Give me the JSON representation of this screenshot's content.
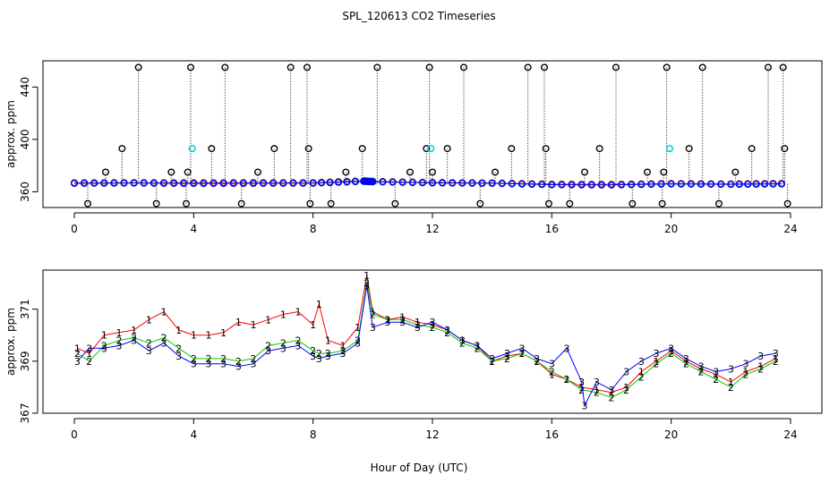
{
  "figure": {
    "title": "SPL_120613  CO2 Timeseries",
    "xlabel": "Hour of Day (UTC)"
  },
  "colors": {
    "black": "#000000",
    "red": "#ff0000",
    "green": "#00cc00",
    "blue": "#0000ff",
    "cyan": "#00cccc"
  },
  "chart_data": [
    {
      "type": "scatter",
      "title": "SPL_120613  CO2 Timeseries",
      "ylabel": "approx. ppm",
      "xlabel": "",
      "xlim": [
        0,
        24
      ],
      "ylim": [
        348,
        460
      ],
      "xticks": [
        0,
        4,
        8,
        12,
        16,
        20,
        24
      ],
      "yticks": [
        360,
        400,
        440
      ],
      "flag_values": [
        351,
        375,
        393,
        455
      ],
      "flag_x": [
        0.45,
        1.05,
        1.6,
        2.15,
        2.75,
        3.25,
        3.75,
        3.8,
        3.9,
        4.6,
        5.05,
        5.6,
        6.15,
        6.7,
        7.25,
        7.8,
        7.85,
        7.9,
        8.6,
        9.1,
        9.65,
        10.15,
        10.75,
        11.25,
        11.8,
        11.9,
        12.0,
        12.5,
        13.05,
        13.6,
        14.1,
        14.65,
        15.2,
        15.75,
        15.8,
        15.9,
        16.6,
        17.1,
        17.6,
        18.15,
        18.7,
        19.2,
        19.7,
        19.75,
        19.85,
        20.6,
        21.05,
        21.6,
        22.15,
        22.7,
        23.25,
        23.75,
        23.8,
        23.9
      ],
      "flag_levels": [
        0,
        1,
        2,
        3,
        0,
        1,
        0,
        1,
        3,
        2,
        3,
        0,
        1,
        2,
        3,
        3,
        2,
        0,
        0,
        1,
        2,
        3,
        0,
        1,
        2,
        3,
        1,
        2,
        3,
        0,
        1,
        2,
        3,
        3,
        2,
        0,
        0,
        1,
        2,
        3,
        0,
        1,
        0,
        1,
        3,
        2,
        3,
        0,
        1,
        2,
        3,
        3,
        2,
        0
      ],
      "series": [
        {
          "name": "1",
          "color": "#ff0000",
          "x": [
            0,
            2,
            4,
            6,
            8,
            9.7,
            10,
            12,
            14,
            16,
            18,
            20,
            22,
            23.7
          ],
          "values": [
            366.9,
            367.0,
            366.9,
            367.0,
            367.0,
            368.4,
            368.0,
            367.1,
            366.8,
            365.8,
            365.7,
            366.3,
            366.0,
            366.4
          ]
        },
        {
          "name": "2",
          "color": "#00cc00",
          "x": [
            0,
            2,
            4,
            6,
            8,
            9.7,
            10,
            12,
            14,
            16,
            18,
            20,
            22,
            23.7
          ],
          "values": [
            366.6,
            366.8,
            366.5,
            366.6,
            366.7,
            368.2,
            367.8,
            366.9,
            366.6,
            365.5,
            365.3,
            366.1,
            365.8,
            366.1
          ]
        },
        {
          "name": "3",
          "color": "#0000ff",
          "x": [
            0,
            2,
            4,
            6,
            8,
            9.7,
            10,
            12,
            14,
            16,
            18,
            20,
            22,
            23.7
          ],
          "values": [
            366.5,
            366.7,
            366.4,
            366.5,
            366.6,
            368.0,
            367.7,
            366.8,
            366.5,
            365.4,
            365.2,
            366.0,
            365.7,
            366.0
          ]
        }
      ]
    },
    {
      "type": "line",
      "title": "",
      "ylabel": "approx. ppm",
      "xlabel": "Hour of Day (UTC)",
      "xlim": [
        0,
        24
      ],
      "ylim": [
        367,
        372.5
      ],
      "xticks": [
        0,
        4,
        8,
        12,
        16,
        20,
        24
      ],
      "yticks": [
        367,
        369,
        371
      ],
      "series": [
        {
          "name": "1",
          "color": "#ff0000",
          "x": [
            0.1,
            0.5,
            1.0,
            1.5,
            2.0,
            2.5,
            3.0,
            3.5,
            4.0,
            4.5,
            5.0,
            5.5,
            6.0,
            6.5,
            7.0,
            7.5,
            8.0,
            8.2,
            8.5,
            9.0,
            9.5,
            9.8,
            10.0,
            10.5,
            11.0,
            11.5,
            12.0,
            12.5,
            13.0,
            13.5,
            14.0,
            14.5,
            15.0,
            15.5,
            16.0,
            16.5,
            17.0,
            17.5,
            18.0,
            18.5,
            19.0,
            19.5,
            20.0,
            20.5,
            21.0,
            21.5,
            22.0,
            22.5,
            23.0,
            23.5
          ],
          "values": [
            369.5,
            369.3,
            370.0,
            370.1,
            370.2,
            370.6,
            370.9,
            370.2,
            370.0,
            370.0,
            370.1,
            370.5,
            370.4,
            370.6,
            370.8,
            370.9,
            370.4,
            371.2,
            369.8,
            369.6,
            370.3,
            372.3,
            370.9,
            370.6,
            370.7,
            370.5,
            370.4,
            370.2,
            369.8,
            369.6,
            369.0,
            369.2,
            369.3,
            369.0,
            368.5,
            368.3,
            368.0,
            367.9,
            367.8,
            368.0,
            368.6,
            369.0,
            369.4,
            369.0,
            368.7,
            368.5,
            368.2,
            368.6,
            368.8,
            369.1
          ]
        },
        {
          "name": "2",
          "color": "#00cc00",
          "x": [
            0.1,
            0.5,
            1.0,
            1.5,
            2.0,
            2.5,
            3.0,
            3.5,
            4.0,
            4.5,
            5.0,
            5.5,
            6.0,
            6.5,
            7.0,
            7.5,
            8.0,
            8.2,
            8.5,
            9.0,
            9.5,
            9.8,
            10.0,
            10.5,
            11.0,
            11.5,
            12.0,
            12.5,
            13.0,
            13.5,
            14.0,
            14.5,
            15.0,
            15.5,
            16.0,
            16.5,
            17.0,
            17.5,
            18.0,
            18.5,
            19.0,
            19.5,
            20.0,
            20.5,
            21.0,
            21.5,
            22.0,
            22.5,
            23.0,
            23.5
          ],
          "values": [
            369.3,
            369.0,
            369.6,
            369.8,
            369.9,
            369.7,
            369.9,
            369.5,
            369.1,
            369.1,
            369.1,
            369.0,
            369.1,
            369.6,
            369.7,
            369.8,
            369.4,
            369.3,
            369.3,
            369.4,
            369.8,
            372.0,
            370.8,
            370.6,
            370.6,
            370.4,
            370.3,
            370.1,
            369.7,
            369.5,
            369.0,
            369.1,
            369.3,
            369.0,
            368.6,
            368.3,
            367.9,
            367.8,
            367.6,
            367.9,
            368.4,
            368.9,
            369.3,
            368.9,
            368.6,
            368.3,
            368.0,
            368.5,
            368.7,
            369.0
          ]
        },
        {
          "name": "3",
          "color": "#0000ff",
          "x": [
            0.1,
            0.5,
            1.0,
            1.5,
            2.0,
            2.5,
            3.0,
            3.5,
            4.0,
            4.5,
            5.0,
            5.5,
            6.0,
            6.5,
            7.0,
            7.5,
            8.0,
            8.2,
            8.5,
            9.0,
            9.5,
            9.8,
            10.0,
            10.5,
            11.0,
            11.5,
            12.0,
            12.5,
            13.0,
            13.5,
            14.0,
            14.5,
            15.0,
            15.5,
            16.0,
            16.5,
            17.0,
            17.1,
            17.5,
            18.0,
            18.5,
            19.0,
            19.5,
            20.0,
            20.5,
            21.0,
            21.5,
            22.0,
            22.5,
            23.0,
            23.5
          ],
          "values": [
            369.0,
            369.5,
            369.5,
            369.6,
            369.8,
            369.4,
            369.7,
            369.2,
            368.9,
            368.9,
            368.9,
            368.8,
            368.9,
            369.4,
            369.5,
            369.6,
            369.2,
            369.1,
            369.2,
            369.3,
            369.7,
            371.9,
            370.3,
            370.5,
            370.5,
            370.3,
            370.5,
            370.2,
            369.8,
            369.6,
            369.1,
            369.3,
            369.5,
            369.1,
            368.9,
            369.5,
            368.2,
            367.3,
            368.2,
            367.9,
            368.6,
            369.0,
            369.3,
            369.5,
            369.1,
            368.8,
            368.6,
            368.7,
            368.9,
            369.2,
            369.3
          ]
        }
      ]
    }
  ]
}
